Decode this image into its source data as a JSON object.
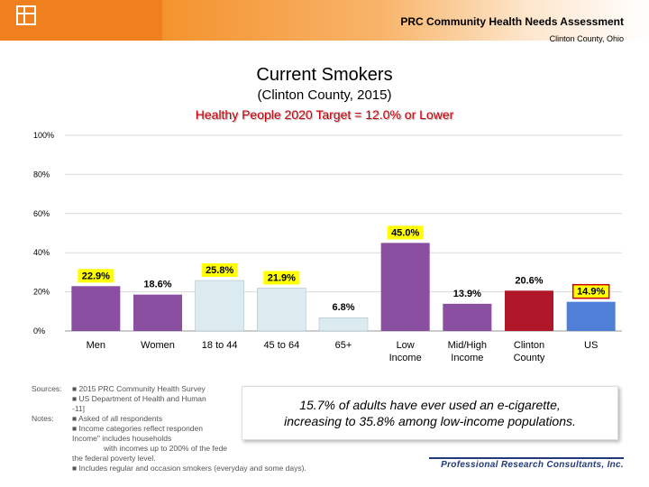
{
  "header": {
    "title": "PRC Community Health Needs Assessment",
    "subtitle": "Clinton County, Ohio"
  },
  "chart_data": {
    "type": "bar",
    "title": "Current Smokers",
    "subtitle": "(Clinton County, 2015)",
    "target_label": "Healthy People 2020 Target = 12.0% or Lower",
    "ylim": [
      0,
      100
    ],
    "yticks": [
      "0%",
      "20%",
      "40%",
      "60%",
      "80%",
      "100%"
    ],
    "ytick_values": [
      0,
      20,
      40,
      60,
      80,
      100
    ],
    "grid": true,
    "categories": [
      "Men",
      "Women",
      "18 to 44",
      "45 to 64",
      "65+",
      "Low Income",
      "Mid/High Income",
      "Clinton County",
      "US"
    ],
    "values": [
      22.9,
      18.6,
      25.8,
      21.9,
      6.8,
      45.0,
      13.9,
      20.6,
      14.9
    ],
    "value_labels": [
      "22.9%",
      "18.6%",
      "25.8%",
      "21.9%",
      "6.8%",
      "45.0%",
      "13.9%",
      "20.6%",
      "14.9%"
    ],
    "colors": [
      "#8a4fa0",
      "#8a4fa0",
      "#dcebf0",
      "#dcebf0",
      "#dcebf0",
      "#8a4fa0",
      "#8a4fa0",
      "#b0182a",
      "#4f7fd6"
    ],
    "highlighted_labels": [
      0,
      2,
      3,
      5,
      8
    ]
  },
  "notes": {
    "sources_label": "Sources:",
    "sources": [
      "■      2015 PRC Community Health Survey",
      "■      US Department of Health and Human"
    ],
    "sources_cont": "-11]",
    "notes_label": "Notes:",
    "notes": [
      "■      Asked of all respondents",
      "■      Income categories reflect responden"
    ],
    "income_def": "Income\" includes households",
    "income_def2": "with incomes up to 200% of the fede",
    "income_def3": "the federal poverty level.",
    "last": "■      Includes regular and occasion smokers (everyday and some days)."
  },
  "callout": {
    "line1": "15.7% of adults have ever used an e-cigarette,",
    "line2": "increasing to 35.8% among low-income populations."
  },
  "logo": {
    "text": "Professional Research Consultants, Inc."
  },
  "theme": {
    "accent": "#f0801e",
    "target_color": "#c8000a",
    "label_highlight": "#ffff00"
  }
}
